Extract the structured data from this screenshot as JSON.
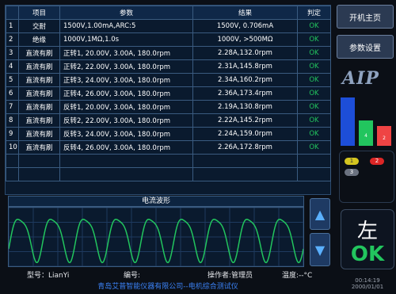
{
  "table": {
    "headers": [
      "",
      "项目",
      "参数",
      "结果",
      "判定"
    ],
    "rows": [
      {
        "idx": "1",
        "item": "交耐",
        "param": "1500V,1.00mA,ARC:5",
        "result": "1500V, 0.706mA",
        "verdict": "OK"
      },
      {
        "idx": "2",
        "item": "绝缘",
        "param": "1000V,1MΩ,1.0s",
        "result": "1000V, >500MΩ",
        "verdict": "OK"
      },
      {
        "idx": "3",
        "item": "直流有刷",
        "param": "正转1, 20.00V, 3.00A, 180.0rpm",
        "result": "2.28A,132.0rpm",
        "verdict": "OK"
      },
      {
        "idx": "4",
        "item": "直流有刷",
        "param": "正转2, 22.00V, 3.00A, 180.0rpm",
        "result": "2.31A,145.8rpm",
        "verdict": "OK"
      },
      {
        "idx": "5",
        "item": "直流有刷",
        "param": "正转3, 24.00V, 3.00A, 180.0rpm",
        "result": "2.34A,160.2rpm",
        "verdict": "OK"
      },
      {
        "idx": "6",
        "item": "直流有刷",
        "param": "正转4, 26.00V, 3.00A, 180.0rpm",
        "result": "2.36A,173.4rpm",
        "verdict": "OK"
      },
      {
        "idx": "7",
        "item": "直流有刷",
        "param": "反转1, 20.00V, 3.00A, 180.0rpm",
        "result": "2.19A,130.8rpm",
        "verdict": "OK"
      },
      {
        "idx": "8",
        "item": "直流有刷",
        "param": "反转2, 22.00V, 3.00A, 180.0rpm",
        "result": "2.22A,145.2rpm",
        "verdict": "OK"
      },
      {
        "idx": "9",
        "item": "直流有刷",
        "param": "反转3, 24.00V, 3.00A, 180.0rpm",
        "result": "2.24A,159.0rpm",
        "verdict": "OK"
      },
      {
        "idx": "10",
        "item": "直流有刷",
        "param": "反转4, 26.00V, 3.00A, 180.0rpm",
        "result": "2.26A,172.8rpm",
        "verdict": "OK"
      }
    ],
    "empty_rows": 2
  },
  "waveform": {
    "title": "电流波形",
    "cycles": 9,
    "line_color": "#22c55e",
    "grid_color": "#1e3a5f"
  },
  "scroll": {
    "up_icon": "arrow-up-icon",
    "down_icon": "arrow-down-icon"
  },
  "info": {
    "model": "型号：LianYi",
    "number": "编号:",
    "operator": "操作者:管理员",
    "temperature": "温度:--°C"
  },
  "footer": {
    "company": "青岛艾普智能仪器有限公司--电机综合测试仪"
  },
  "right": {
    "home_button": "开机主页",
    "settings_button": "参数设置",
    "logo": "AIP",
    "bars": [
      {
        "label": "",
        "color": "#1d4ed8",
        "level": 0.85
      },
      {
        "label": "4",
        "color": "#22c55e",
        "level": 0.45
      },
      {
        "label": "2",
        "color": "#ef4444",
        "level": 0.35
      }
    ],
    "dots": [
      {
        "label": "1",
        "color": "#d4c520",
        "text_color": "#333"
      },
      {
        "label": "2",
        "color": "#dc2626",
        "text_color": "#fff"
      },
      {
        "label": "3",
        "color": "#6b7280",
        "text_color": "#fff"
      }
    ],
    "position": "左",
    "result": "OK",
    "time": "00:14:19",
    "date": "2000/01/01"
  }
}
